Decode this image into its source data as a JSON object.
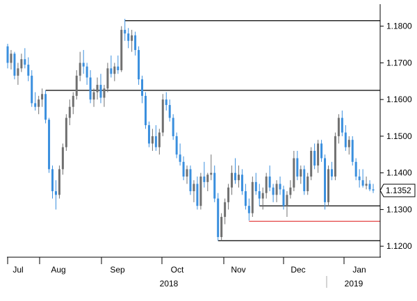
{
  "chart_data": {
    "type": "candlestick",
    "y_range": [
      1.117,
      1.186
    ],
    "y_ticks": [
      "1.1800",
      "1.1700",
      "1.1600",
      "1.1500",
      "1.1400",
      "1.1300",
      "1.1200"
    ],
    "x_month_labels": [
      "Jul",
      "Aug",
      "Sep",
      "Oct",
      "Nov",
      "Dec",
      "Jan"
    ],
    "x_year_labels": [
      "2018",
      "2019"
    ],
    "last_price": 1.1352,
    "last_price_label": "1.1352",
    "grid": false,
    "candle_up_color": "#707070",
    "candle_down_color": "#3a8fde",
    "horizontal_levels": [
      {
        "value": 1.1815,
        "color": "#000000"
      },
      {
        "value": 1.1625,
        "color": "#000000"
      },
      {
        "value": 1.131,
        "color": "#000000"
      },
      {
        "value": 1.1268,
        "color": "#e03030"
      },
      {
        "value": 1.1215,
        "color": "#000000"
      }
    ],
    "candles": [
      [
        1.1745,
        1.1752,
        1.1685,
        1.17
      ],
      [
        1.17,
        1.1735,
        1.1682,
        1.1725
      ],
      [
        1.1725,
        1.173,
        1.1655,
        1.1665
      ],
      [
        1.1665,
        1.17,
        1.164,
        1.1685
      ],
      [
        1.1685,
        1.1725,
        1.1675,
        1.171
      ],
      [
        1.171,
        1.174,
        1.1685,
        1.1695
      ],
      [
        1.1695,
        1.1715,
        1.165,
        1.1665
      ],
      [
        1.1665,
        1.168,
        1.158,
        1.159
      ],
      [
        1.159,
        1.162,
        1.157,
        1.158
      ],
      [
        1.158,
        1.161,
        1.156,
        1.16
      ],
      [
        1.16,
        1.163,
        1.158,
        1.1615
      ],
      [
        1.1615,
        1.1625,
        1.1535,
        1.1545
      ],
      [
        1.1545,
        1.155,
        1.14,
        1.141
      ],
      [
        1.141,
        1.142,
        1.133,
        1.135
      ],
      [
        1.135,
        1.138,
        1.13,
        1.134
      ],
      [
        1.134,
        1.142,
        1.133,
        1.141
      ],
      [
        1.141,
        1.148,
        1.1395,
        1.147
      ],
      [
        1.147,
        1.156,
        1.146,
        1.155
      ],
      [
        1.155,
        1.16,
        1.153,
        1.158
      ],
      [
        1.158,
        1.162,
        1.156,
        1.161
      ],
      [
        1.161,
        1.168,
        1.16,
        1.1665
      ],
      [
        1.1665,
        1.173,
        1.165,
        1.17
      ],
      [
        1.17,
        1.1735,
        1.167,
        1.169
      ],
      [
        1.169,
        1.17,
        1.164,
        1.166
      ],
      [
        1.166,
        1.168,
        1.159,
        1.16
      ],
      [
        1.16,
        1.163,
        1.158,
        1.162
      ],
      [
        1.162,
        1.166,
        1.16,
        1.164
      ],
      [
        1.164,
        1.167,
        1.159,
        1.1605
      ],
      [
        1.1605,
        1.164,
        1.158,
        1.163
      ],
      [
        1.163,
        1.17,
        1.162,
        1.1685
      ],
      [
        1.1685,
        1.172,
        1.166,
        1.167
      ],
      [
        1.167,
        1.17,
        1.165,
        1.169
      ],
      [
        1.169,
        1.172,
        1.167,
        1.168
      ],
      [
        1.168,
        1.18,
        1.1675,
        1.179
      ],
      [
        1.179,
        1.182,
        1.176,
        1.178
      ],
      [
        1.178,
        1.1795,
        1.174,
        1.176
      ],
      [
        1.176,
        1.179,
        1.173,
        1.1775
      ],
      [
        1.1775,
        1.1785,
        1.172,
        1.1735
      ],
      [
        1.1735,
        1.1745,
        1.164,
        1.1655
      ],
      [
        1.1655,
        1.1665,
        1.159,
        1.161
      ],
      [
        1.161,
        1.162,
        1.152,
        1.153
      ],
      [
        1.153,
        1.154,
        1.147,
        1.148
      ],
      [
        1.148,
        1.152,
        1.146,
        1.15
      ],
      [
        1.15,
        1.153,
        1.146,
        1.147
      ],
      [
        1.147,
        1.152,
        1.145,
        1.151
      ],
      [
        1.151,
        1.1615,
        1.15,
        1.16
      ],
      [
        1.16,
        1.162,
        1.157,
        1.1585
      ],
      [
        1.1585,
        1.16,
        1.154,
        1.155
      ],
      [
        1.155,
        1.156,
        1.149,
        1.15
      ],
      [
        1.15,
        1.151,
        1.144,
        1.145
      ],
      [
        1.145,
        1.148,
        1.142,
        1.143
      ],
      [
        1.143,
        1.1445,
        1.138,
        1.139
      ],
      [
        1.139,
        1.142,
        1.137,
        1.141
      ],
      [
        1.141,
        1.142,
        1.134,
        1.135
      ],
      [
        1.135,
        1.138,
        1.132,
        1.137
      ],
      [
        1.137,
        1.139,
        1.13,
        1.131
      ],
      [
        1.131,
        1.14,
        1.13,
        1.139
      ],
      [
        1.139,
        1.143,
        1.136,
        1.1375
      ],
      [
        1.1375,
        1.14,
        1.135,
        1.1395
      ],
      [
        1.1395,
        1.145,
        1.138,
        1.14
      ],
      [
        1.14,
        1.142,
        1.132,
        1.133
      ],
      [
        1.133,
        1.1345,
        1.1215,
        1.1225
      ],
      [
        1.1225,
        1.129,
        1.1215,
        1.128
      ],
      [
        1.128,
        1.133,
        1.126,
        1.132
      ],
      [
        1.132,
        1.137,
        1.13,
        1.136
      ],
      [
        1.136,
        1.142,
        1.134,
        1.14
      ],
      [
        1.14,
        1.144,
        1.137,
        1.138
      ],
      [
        1.138,
        1.142,
        1.136,
        1.1395
      ],
      [
        1.1395,
        1.141,
        1.134,
        1.135
      ],
      [
        1.135,
        1.137,
        1.13,
        1.131
      ],
      [
        1.131,
        1.133,
        1.127,
        1.129
      ],
      [
        1.129,
        1.139,
        1.128,
        1.1375
      ],
      [
        1.1375,
        1.14,
        1.134,
        1.135
      ],
      [
        1.135,
        1.137,
        1.131,
        1.133
      ],
      [
        1.133,
        1.136,
        1.13,
        1.1345
      ],
      [
        1.1345,
        1.14,
        1.133,
        1.139
      ],
      [
        1.139,
        1.142,
        1.135,
        1.136
      ],
      [
        1.136,
        1.137,
        1.132,
        1.134
      ],
      [
        1.134,
        1.138,
        1.132,
        1.137
      ],
      [
        1.137,
        1.139,
        1.134,
        1.1355
      ],
      [
        1.1355,
        1.1365,
        1.13,
        1.131
      ],
      [
        1.131,
        1.135,
        1.128,
        1.134
      ],
      [
        1.134,
        1.138,
        1.133,
        1.136
      ],
      [
        1.136,
        1.146,
        1.135,
        1.144
      ],
      [
        1.144,
        1.146,
        1.138,
        1.139
      ],
      [
        1.139,
        1.142,
        1.137,
        1.141
      ],
      [
        1.141,
        1.142,
        1.134,
        1.135
      ],
      [
        1.135,
        1.14,
        1.134,
        1.139
      ],
      [
        1.139,
        1.147,
        1.138,
        1.146
      ],
      [
        1.146,
        1.148,
        1.141,
        1.142
      ],
      [
        1.142,
        1.149,
        1.14,
        1.148
      ],
      [
        1.148,
        1.149,
        1.143,
        1.144
      ],
      [
        1.144,
        1.145,
        1.13,
        1.132
      ],
      [
        1.132,
        1.142,
        1.131,
        1.141
      ],
      [
        1.141,
        1.143,
        1.138,
        1.139
      ],
      [
        1.139,
        1.151,
        1.138,
        1.15
      ],
      [
        1.15,
        1.156,
        1.148,
        1.155
      ],
      [
        1.155,
        1.157,
        1.15,
        1.151
      ],
      [
        1.151,
        1.153,
        1.146,
        1.147
      ],
      [
        1.147,
        1.15,
        1.145,
        1.149
      ],
      [
        1.149,
        1.15,
        1.142,
        1.143
      ],
      [
        1.143,
        1.144,
        1.138,
        1.139
      ],
      [
        1.139,
        1.141,
        1.136,
        1.138
      ],
      [
        1.138,
        1.141,
        1.136,
        1.1365
      ],
      [
        1.1365,
        1.139,
        1.1355,
        1.137
      ],
      [
        1.137,
        1.138,
        1.135,
        1.1355
      ],
      [
        1.1355,
        1.137,
        1.1345,
        1.1352
      ]
    ]
  }
}
